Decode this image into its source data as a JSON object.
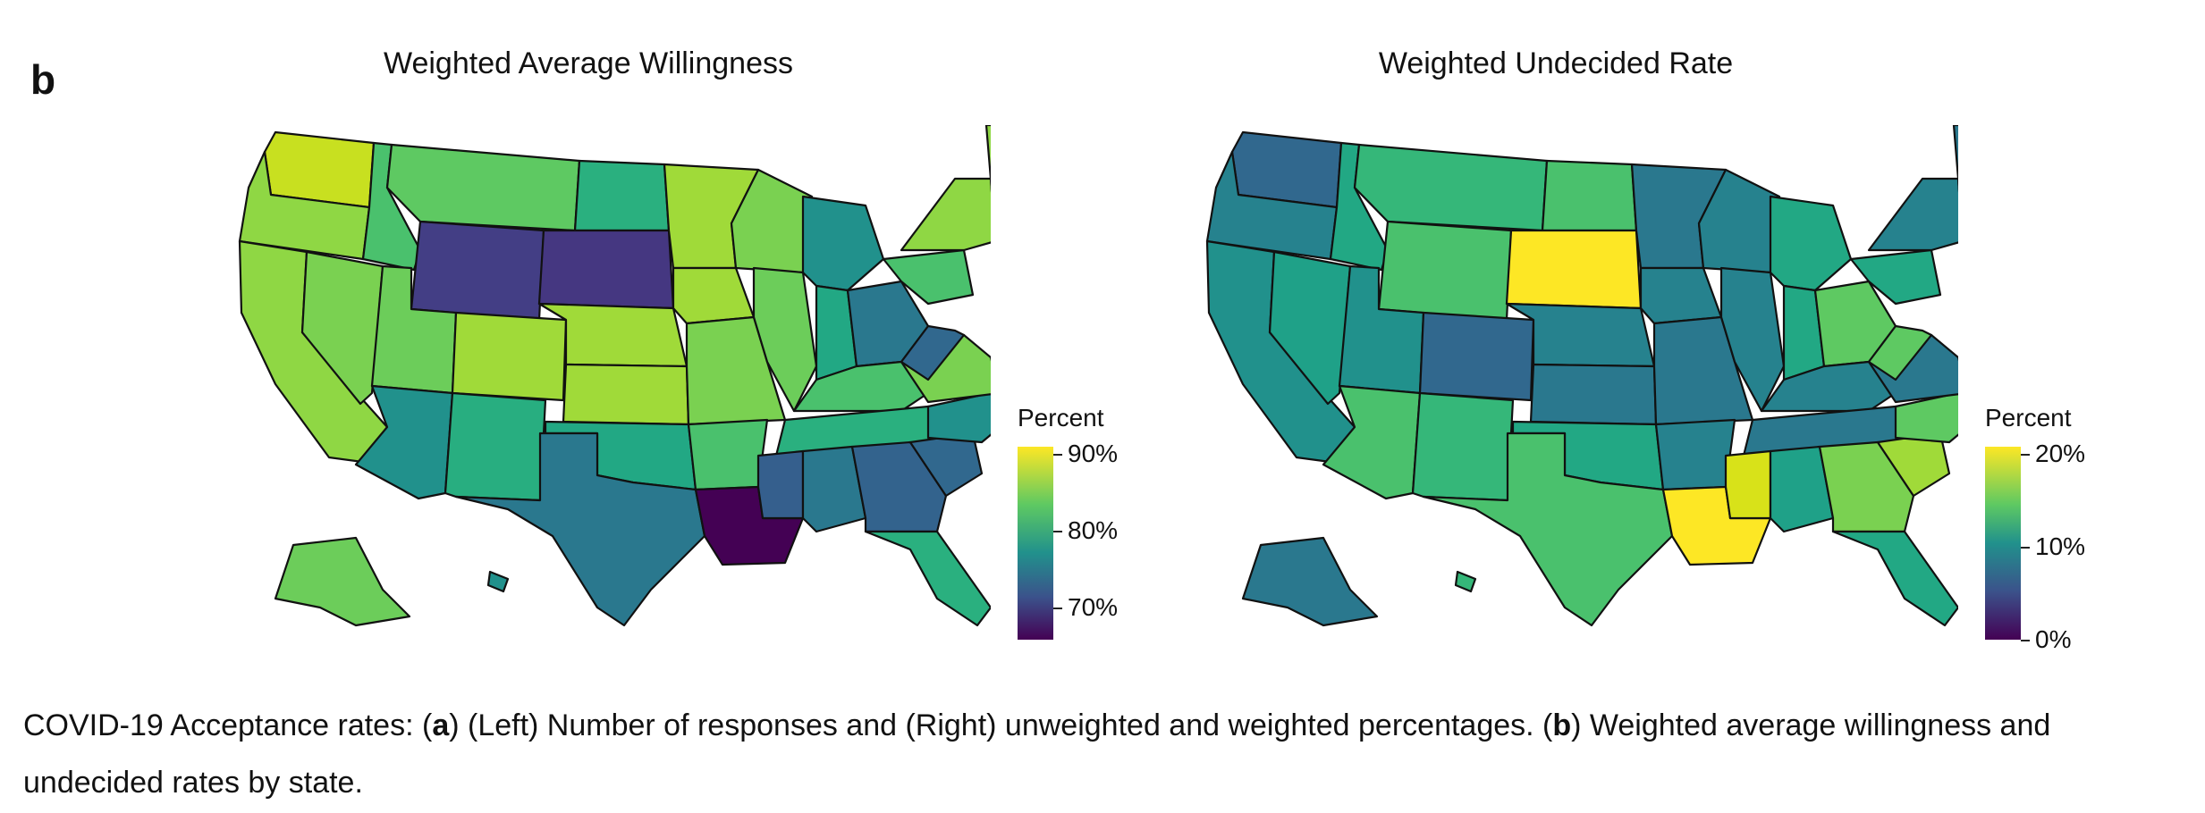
{
  "panel_letter": "b",
  "maps": [
    {
      "title": "Weighted Average Willingness",
      "legend": {
        "title": "Percent",
        "labels": [
          "90%",
          "80%",
          "70%"
        ]
      },
      "colors": {
        "WA": "#c8e020",
        "OR": "#8fd744",
        "CA": "#8fd744",
        "ID": "#4ac16d",
        "NV": "#7ad151",
        "MT": "#5ec962",
        "WY": "#433e85",
        "UT": "#6ccd5a",
        "AZ": "#21918c",
        "CO": "#a0da39",
        "NM": "#28ae80",
        "ND": "#2ab07f",
        "SD": "#453781",
        "NE": "#a0da39",
        "KS": "#a0da39",
        "OK": "#22a884",
        "TX": "#2a788e",
        "MN": "#a0da39",
        "IA": "#a0da39",
        "MO": "#7ad151",
        "AR": "#4ac16d",
        "LA": "#440154",
        "WI": "#7ad151",
        "IL": "#6ccd5a",
        "MI": "#21918c",
        "IN": "#22a884",
        "OH": "#2a788e",
        "KY": "#4ac16d",
        "TN": "#2ab07f",
        "MS": "#355f8d",
        "AL": "#2a788e",
        "GA": "#33638d",
        "FL": "#2ab07f",
        "SC": "#31688e",
        "NC": "#21918c",
        "VA": "#7ad151",
        "WV": "#31688e",
        "PA": "#4ac16d",
        "NY": "#8fd744",
        "ME": "#8fd744",
        "NE_coast": "#c8e020",
        "AK": "#6ccd5a",
        "HI": "#21918c"
      }
    },
    {
      "title": "Weighted Undecided Rate",
      "legend": {
        "title": "Percent",
        "labels": [
          "20%",
          "10%",
          "0%"
        ]
      },
      "colors": {
        "WA": "#31688e",
        "OR": "#26828e",
        "CA": "#21918c",
        "ID": "#22a884",
        "NV": "#1fa188",
        "MT": "#35b779",
        "WY": "#4ac16d",
        "UT": "#21918c",
        "AZ": "#4ac16d",
        "CO": "#31688e",
        "NM": "#35b779",
        "ND": "#4ac16d",
        "SD": "#fde725",
        "NE": "#26828e",
        "KS": "#2a788e",
        "OK": "#22a884",
        "TX": "#4ac16d",
        "MN": "#2a788e",
        "IA": "#26828e",
        "MO": "#2a788e",
        "AR": "#26828e",
        "LA": "#fde725",
        "WI": "#26828e",
        "IL": "#26828e",
        "MI": "#22a884",
        "IN": "#22a884",
        "OH": "#5ec962",
        "KY": "#26828e",
        "TN": "#2a788e",
        "MS": "#d8e219",
        "AL": "#1fa188",
        "GA": "#7ad151",
        "FL": "#22a884",
        "SC": "#a0da39",
        "NC": "#5ec962",
        "VA": "#2a788e",
        "WV": "#5ec962",
        "PA": "#22a884",
        "NY": "#26828e",
        "ME": "#2a788e",
        "NE_coast": "#3b528b",
        "AK": "#2a788e",
        "HI": "#35b779"
      }
    }
  ],
  "caption": {
    "prefix": "COVID-19 Acceptance rates: (",
    "a_label": "a",
    "part_a": ") (Left) Number of responses and (Right) unweighted and weighted percentages. (",
    "b_label": "b",
    "part_b": ") Weighted average willingness and undecided rates by state."
  }
}
